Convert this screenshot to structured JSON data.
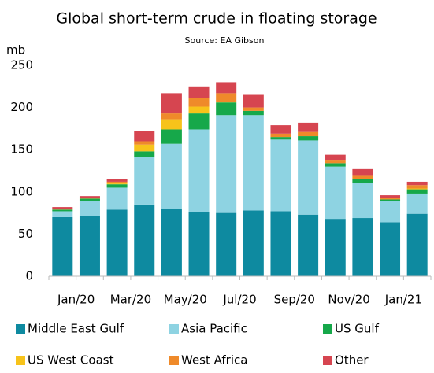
{
  "chart_data": {
    "type": "stacked_bar",
    "title": "Global short-term crude in floating storage",
    "subtitle": "Source: EA Gibson",
    "y_label": "mb",
    "categories": [
      "Jan/20",
      null,
      "Mar/20",
      null,
      "May/20",
      null,
      "Jul/20",
      null,
      "Sep/20",
      null,
      "Nov/20",
      null,
      "Jan/21",
      null
    ],
    "series": [
      {
        "name": "Middle East Gulf",
        "color": "#0e8aa0",
        "values": [
          70,
          71,
          79,
          85,
          80,
          76,
          75,
          78,
          77,
          73,
          68,
          69,
          64,
          74
        ]
      },
      {
        "name": "Asia Pacific",
        "color": "#8ed3e2",
        "values": [
          7,
          18,
          26,
          56,
          77,
          98,
          116,
          113,
          85,
          88,
          62,
          42,
          25,
          24
        ]
      },
      {
        "name": "US Gulf",
        "color": "#16a84a",
        "values": [
          2,
          3,
          4,
          7,
          17,
          19,
          15,
          5,
          3,
          5,
          4,
          4,
          2,
          5
        ]
      },
      {
        "name": "US West Coast",
        "color": "#f7c31a",
        "values": [
          0,
          0,
          1,
          8,
          12,
          8,
          1,
          0,
          0,
          0,
          0,
          0,
          0,
          1
        ]
      },
      {
        "name": "West Africa",
        "color": "#ef8a2a",
        "values": [
          1,
          1,
          2,
          4,
          7,
          10,
          10,
          4,
          4,
          5,
          4,
          4,
          2,
          4
        ]
      },
      {
        "name": "Other",
        "color": "#d64550",
        "values": [
          2,
          2,
          3,
          12,
          24,
          14,
          13,
          15,
          10,
          11,
          6,
          8,
          3,
          4
        ]
      }
    ],
    "ylim": [
      0,
      250
    ],
    "yticks": [
      0,
      50,
      100,
      150,
      200,
      250
    ],
    "grid": false
  }
}
